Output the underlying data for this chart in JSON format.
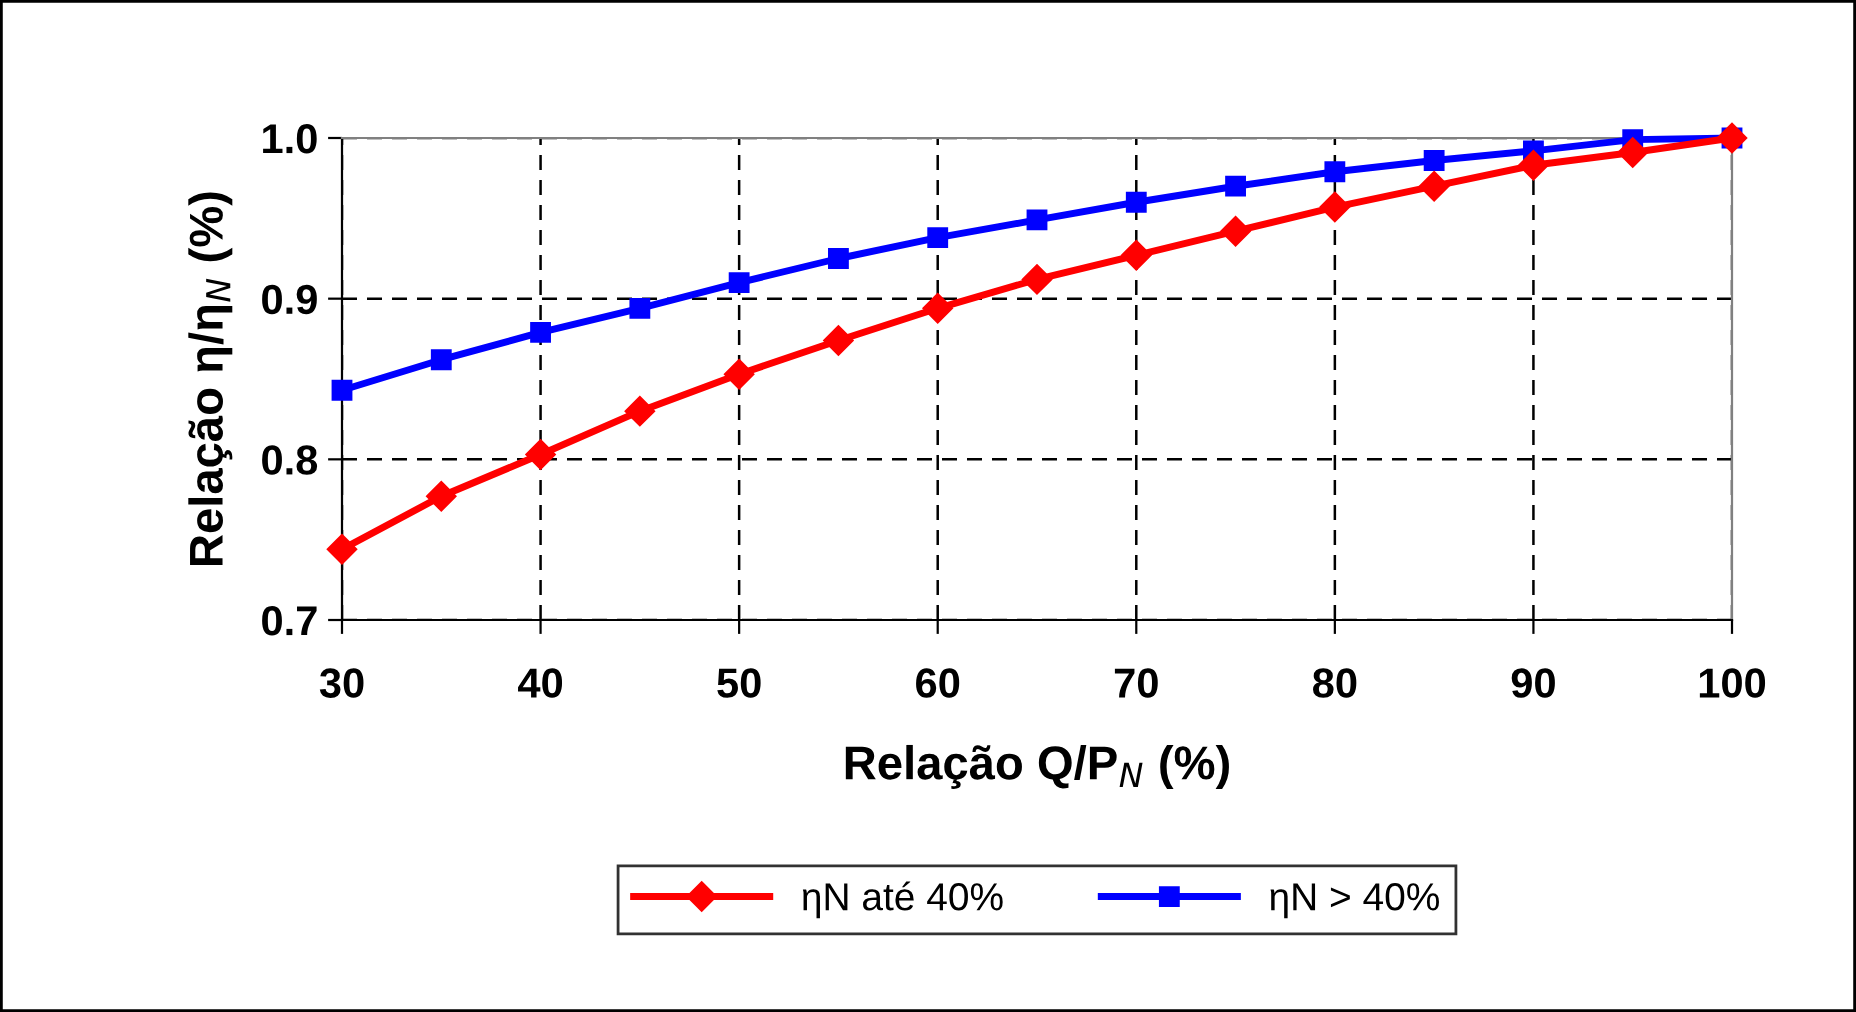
{
  "chart_data": {
    "type": "line",
    "xlabel": "Relação Q/P$_{N}$ (%)",
    "ylabel": "Relação η/η$_{N}$ (%)",
    "x": [
      30,
      35,
      40,
      45,
      50,
      55,
      60,
      65,
      70,
      75,
      80,
      85,
      90,
      95,
      100
    ],
    "series": [
      {
        "name": "ηN até 40%",
        "color": "#ff0000",
        "marker": "diamond",
        "values": [
          0.744,
          0.777,
          0.803,
          0.83,
          0.853,
          0.874,
          0.894,
          0.912,
          0.927,
          0.942,
          0.957,
          0.97,
          0.983,
          0.991,
          1.0
        ]
      },
      {
        "name": "ηN > 40%",
        "color": "#0000ff",
        "marker": "square",
        "values": [
          0.843,
          0.862,
          0.879,
          0.894,
          0.91,
          0.925,
          0.938,
          0.949,
          0.96,
          0.97,
          0.979,
          0.986,
          0.992,
          0.999,
          1.0
        ]
      }
    ],
    "xlim": [
      30,
      100
    ],
    "xticks": [
      30,
      40,
      50,
      60,
      70,
      80,
      90,
      100
    ],
    "ylim": [
      0.7,
      1.0
    ],
    "yticks": [
      0.7,
      0.8,
      0.9,
      {
        "value": 1.0,
        "label": "1.0"
      }
    ],
    "grid": true,
    "legend": "bottom",
    "line_style": "solid"
  }
}
